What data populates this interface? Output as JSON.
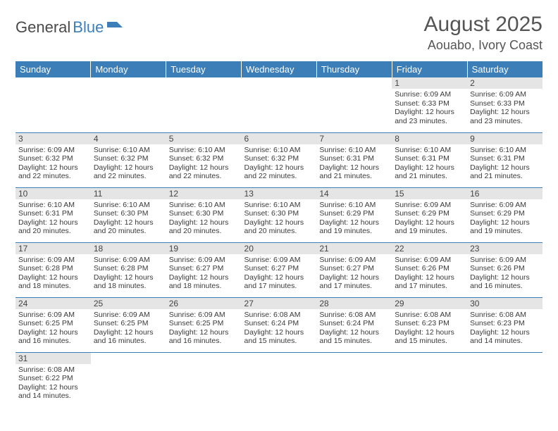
{
  "logo": {
    "text1": "General",
    "text2": "Blue"
  },
  "title": "August 2025",
  "location": "Aouabo, Ivory Coast",
  "colors": {
    "header_bg": "#3c7fb8",
    "header_text": "#ffffff",
    "daynum_bg": "#e5e5e5",
    "cell_border": "#3c7fb8",
    "logo_blue": "#3c7fb8",
    "text": "#3a3a3a"
  },
  "dayNames": [
    "Sunday",
    "Monday",
    "Tuesday",
    "Wednesday",
    "Thursday",
    "Friday",
    "Saturday"
  ],
  "firstDayOffset": 5,
  "daysInMonth": 31,
  "days": {
    "1": {
      "sunrise": "6:09 AM",
      "sunset": "6:33 PM",
      "daylight": "12 hours and 23 minutes."
    },
    "2": {
      "sunrise": "6:09 AM",
      "sunset": "6:33 PM",
      "daylight": "12 hours and 23 minutes."
    },
    "3": {
      "sunrise": "6:09 AM",
      "sunset": "6:32 PM",
      "daylight": "12 hours and 22 minutes."
    },
    "4": {
      "sunrise": "6:10 AM",
      "sunset": "6:32 PM",
      "daylight": "12 hours and 22 minutes."
    },
    "5": {
      "sunrise": "6:10 AM",
      "sunset": "6:32 PM",
      "daylight": "12 hours and 22 minutes."
    },
    "6": {
      "sunrise": "6:10 AM",
      "sunset": "6:32 PM",
      "daylight": "12 hours and 22 minutes."
    },
    "7": {
      "sunrise": "6:10 AM",
      "sunset": "6:31 PM",
      "daylight": "12 hours and 21 minutes."
    },
    "8": {
      "sunrise": "6:10 AM",
      "sunset": "6:31 PM",
      "daylight": "12 hours and 21 minutes."
    },
    "9": {
      "sunrise": "6:10 AM",
      "sunset": "6:31 PM",
      "daylight": "12 hours and 21 minutes."
    },
    "10": {
      "sunrise": "6:10 AM",
      "sunset": "6:31 PM",
      "daylight": "12 hours and 20 minutes."
    },
    "11": {
      "sunrise": "6:10 AM",
      "sunset": "6:30 PM",
      "daylight": "12 hours and 20 minutes."
    },
    "12": {
      "sunrise": "6:10 AM",
      "sunset": "6:30 PM",
      "daylight": "12 hours and 20 minutes."
    },
    "13": {
      "sunrise": "6:10 AM",
      "sunset": "6:30 PM",
      "daylight": "12 hours and 20 minutes."
    },
    "14": {
      "sunrise": "6:10 AM",
      "sunset": "6:29 PM",
      "daylight": "12 hours and 19 minutes."
    },
    "15": {
      "sunrise": "6:09 AM",
      "sunset": "6:29 PM",
      "daylight": "12 hours and 19 minutes."
    },
    "16": {
      "sunrise": "6:09 AM",
      "sunset": "6:29 PM",
      "daylight": "12 hours and 19 minutes."
    },
    "17": {
      "sunrise": "6:09 AM",
      "sunset": "6:28 PM",
      "daylight": "12 hours and 18 minutes."
    },
    "18": {
      "sunrise": "6:09 AM",
      "sunset": "6:28 PM",
      "daylight": "12 hours and 18 minutes."
    },
    "19": {
      "sunrise": "6:09 AM",
      "sunset": "6:27 PM",
      "daylight": "12 hours and 18 minutes."
    },
    "20": {
      "sunrise": "6:09 AM",
      "sunset": "6:27 PM",
      "daylight": "12 hours and 17 minutes."
    },
    "21": {
      "sunrise": "6:09 AM",
      "sunset": "6:27 PM",
      "daylight": "12 hours and 17 minutes."
    },
    "22": {
      "sunrise": "6:09 AM",
      "sunset": "6:26 PM",
      "daylight": "12 hours and 17 minutes."
    },
    "23": {
      "sunrise": "6:09 AM",
      "sunset": "6:26 PM",
      "daylight": "12 hours and 16 minutes."
    },
    "24": {
      "sunrise": "6:09 AM",
      "sunset": "6:25 PM",
      "daylight": "12 hours and 16 minutes."
    },
    "25": {
      "sunrise": "6:09 AM",
      "sunset": "6:25 PM",
      "daylight": "12 hours and 16 minutes."
    },
    "26": {
      "sunrise": "6:09 AM",
      "sunset": "6:25 PM",
      "daylight": "12 hours and 16 minutes."
    },
    "27": {
      "sunrise": "6:08 AM",
      "sunset": "6:24 PM",
      "daylight": "12 hours and 15 minutes."
    },
    "28": {
      "sunrise": "6:08 AM",
      "sunset": "6:24 PM",
      "daylight": "12 hours and 15 minutes."
    },
    "29": {
      "sunrise": "6:08 AM",
      "sunset": "6:23 PM",
      "daylight": "12 hours and 15 minutes."
    },
    "30": {
      "sunrise": "6:08 AM",
      "sunset": "6:23 PM",
      "daylight": "12 hours and 14 minutes."
    },
    "31": {
      "sunrise": "6:08 AM",
      "sunset": "6:22 PM",
      "daylight": "12 hours and 14 minutes."
    }
  },
  "labels": {
    "sunrise": "Sunrise:",
    "sunset": "Sunset:",
    "daylight": "Daylight:"
  }
}
